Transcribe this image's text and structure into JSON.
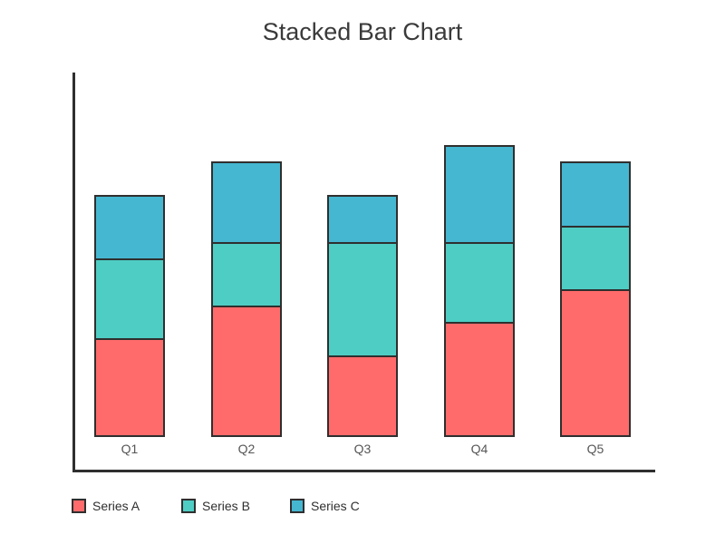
{
  "page": {
    "background": "#ffffff"
  },
  "chart_data": {
    "type": "bar",
    "stacked": true,
    "title": "Stacked Bar Chart",
    "categories": [
      "Q1",
      "Q2",
      "Q3",
      "Q4",
      "Q5"
    ],
    "series": [
      {
        "name": "Series A",
        "color": "#FF6B6B",
        "values": [
          30,
          40,
          25,
          35,
          45
        ]
      },
      {
        "name": "Series B",
        "color": "#4ECDC4",
        "values": [
          25,
          20,
          35,
          25,
          20
        ]
      },
      {
        "name": "Series C",
        "color": "#45B7D1",
        "values": [
          20,
          25,
          15,
          30,
          20
        ]
      }
    ],
    "stack_totals": [
      75,
      85,
      75,
      90,
      85
    ],
    "xlabel": "",
    "ylabel": "",
    "ylim": [
      0,
      112
    ],
    "grid": false,
    "y_ticks": [],
    "legend_position": "bottom-left",
    "axis_color": "#2f2f2f",
    "segment_border_color": "#2f2f2f",
    "title_color": "#3a3a3a",
    "category_label_color": "#565656",
    "legend_label_color": "#2f2f2f"
  }
}
